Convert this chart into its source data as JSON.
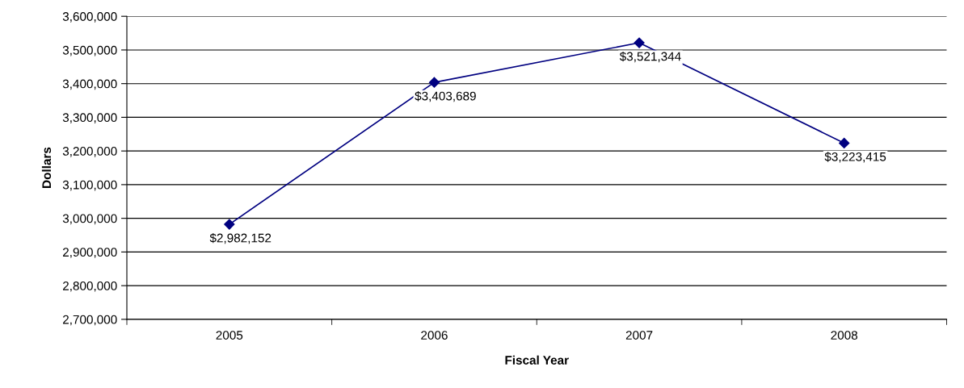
{
  "chart_data": {
    "type": "line",
    "xlabel": "Fiscal Year",
    "ylabel": "Dollars",
    "categories": [
      "2005",
      "2006",
      "2007",
      "2008"
    ],
    "series": [
      {
        "color": "#000080",
        "values": [
          2982152,
          3403689,
          3521344,
          3223415
        ],
        "value_labels": [
          "$2,982,152",
          "$3,403,689",
          "$3,521,344",
          "$3,223,415"
        ]
      }
    ],
    "ylim": [
      2700000,
      3600000
    ],
    "yticks": [
      {
        "value": 2700000,
        "label": "2,700,000"
      },
      {
        "value": 2800000,
        "label": "2,800,000"
      },
      {
        "value": 2900000,
        "label": "2,900,000"
      },
      {
        "value": 3000000,
        "label": "3,000,000"
      },
      {
        "value": 3100000,
        "label": "3,100,000"
      },
      {
        "value": 3200000,
        "label": "3,200,000"
      },
      {
        "value": 3300000,
        "label": "3,300,000"
      },
      {
        "value": 3400000,
        "label": "3,400,000"
      },
      {
        "value": 3500000,
        "label": "3,500,000"
      },
      {
        "value": 3600000,
        "label": "3,600,000"
      }
    ],
    "grid": "y",
    "marker": "diamond",
    "line_style": "solid"
  }
}
